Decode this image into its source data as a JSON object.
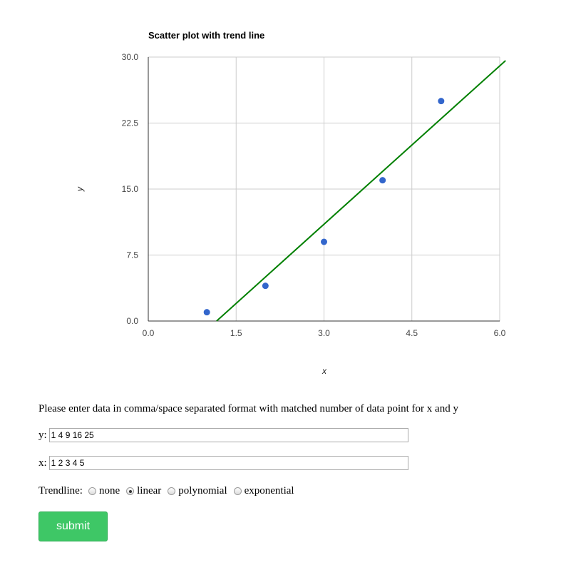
{
  "chart_data": {
    "type": "scatter",
    "title": "Scatter plot with trend line",
    "xlabel": "x",
    "ylabel": "y",
    "xlim": [
      0,
      6
    ],
    "ylim": [
      0,
      30
    ],
    "x_ticks": [
      "0.0",
      "1.5",
      "3.0",
      "4.5",
      "6.0"
    ],
    "y_ticks": [
      "0.0",
      "7.5",
      "15.0",
      "22.5",
      "30.0"
    ],
    "grid": true,
    "legend": "none",
    "series": [
      {
        "x": [
          1,
          2,
          3,
          4,
          5
        ],
        "y": [
          1,
          4,
          9,
          16,
          25
        ],
        "color": "#3366cc"
      }
    ],
    "trendline": {
      "type": "linear",
      "slope": 6,
      "intercept": -7,
      "color": "#008000"
    }
  },
  "form": {
    "instructions": "Please enter data in comma/space separated format with matched number of data point for x and y",
    "y_label": "y:",
    "y_value": "1 4 9 16 25",
    "x_label": "x:",
    "x_value": "1 2 3 4 5",
    "trendline_label": "Trendline:",
    "options": [
      "none",
      "linear",
      "polynomial",
      "exponential"
    ],
    "selected": "linear",
    "submit_label": "submit"
  }
}
